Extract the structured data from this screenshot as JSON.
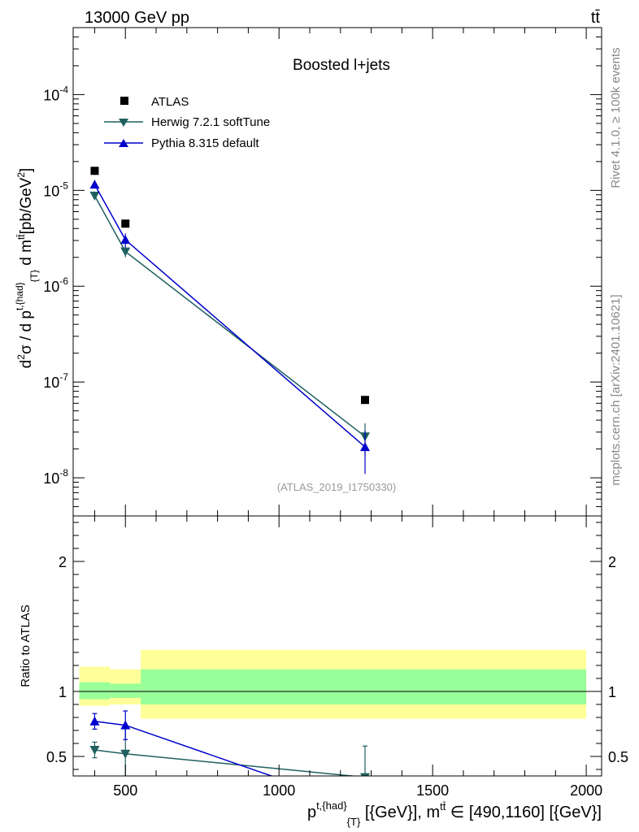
{
  "header": {
    "energy": "13000 GeV pp",
    "process": "tt̄"
  },
  "side_labels": {
    "rivet": "Rivet 4.1.0, ≥ 100k events",
    "mcplots": "mcplots.cern.ch [arXiv:2401.10621]"
  },
  "colors": {
    "atlas": "#000000",
    "herwig": "#1f5f5f",
    "pythia": "#0000cc",
    "band_inner": "#99ff99",
    "band_outer": "#ffff99"
  },
  "chart_data": [
    {
      "type": "scatter",
      "panel": "main",
      "title": "Boosted l+jets",
      "analysis_label": "(ATLAS_2019_I1750330)",
      "ylabel": "d²σ / d p^{t,{had}}_{T} d m^{tt̄} [pb/GeV²]",
      "yscale": "log",
      "ylim": [
        4e-09,
        0.0005
      ],
      "xlim": [
        330,
        2050
      ],
      "y_tick_labels": [
        "10^-8",
        "10^-7",
        "10^-6",
        "10^-5",
        "10^-4"
      ],
      "series": [
        {
          "name": "ATLAS",
          "marker": "square",
          "x": [
            400,
            500,
            1280
          ],
          "y": [
            1.6e-05,
            4.5e-06,
            6.5e-08
          ]
        },
        {
          "name": "Herwig 7.2.1 softTune",
          "marker": "triangle-down",
          "x": [
            400,
            500,
            1280
          ],
          "y": [
            8.8e-06,
            2.3e-06,
            2.7e-08
          ],
          "err": [
            4e-07,
            3e-07,
            1e-08
          ]
        },
        {
          "name": "Pythia 8.315 default",
          "marker": "triangle-up",
          "x": [
            400,
            500,
            1280
          ],
          "y": [
            1.15e-05,
            3.05e-06,
            2.1e-08
          ],
          "err": [
            5e-07,
            5e-07,
            1e-08
          ]
        }
      ]
    },
    {
      "type": "scatter",
      "panel": "ratio",
      "ylabel": "Ratio to ATLAS",
      "xlabel": "p^{t,{had}}_{T} [{GeV}], m^{tt̄} ∈ [490,1160] [{GeV}]",
      "ylim": [
        0.35,
        2.35
      ],
      "xlim": [
        330,
        2050
      ],
      "x_tick_labels": [
        "500",
        "1000",
        "1500",
        "2000"
      ],
      "y_tick_labels": [
        "0.5",
        "1",
        "2"
      ],
      "bands": [
        {
          "x": [
            350,
            450
          ],
          "inner": [
            0.94,
            1.07
          ],
          "outer": [
            0.89,
            1.19
          ]
        },
        {
          "x": [
            450,
            550
          ],
          "inner": [
            0.95,
            1.06
          ],
          "outer": [
            0.9,
            1.17
          ]
        },
        {
          "x": [
            550,
            2000
          ],
          "inner": [
            0.9,
            1.17
          ],
          "outer": [
            0.79,
            1.32
          ]
        }
      ],
      "series": [
        {
          "name": "Herwig 7.2.1 softTune",
          "marker": "triangle-down",
          "x": [
            400,
            500,
            1280
          ],
          "y": [
            0.55,
            0.52,
            0.34
          ],
          "err": [
            0.06,
            0.22,
            0.24
          ]
        },
        {
          "name": "Pythia 8.315 default",
          "marker": "triangle-up",
          "x": [
            400,
            500
          ],
          "y": [
            0.77,
            0.74
          ],
          "err": [
            0.06,
            0.11
          ],
          "line_to": [
            1280,
            0.1
          ]
        }
      ]
    }
  ]
}
